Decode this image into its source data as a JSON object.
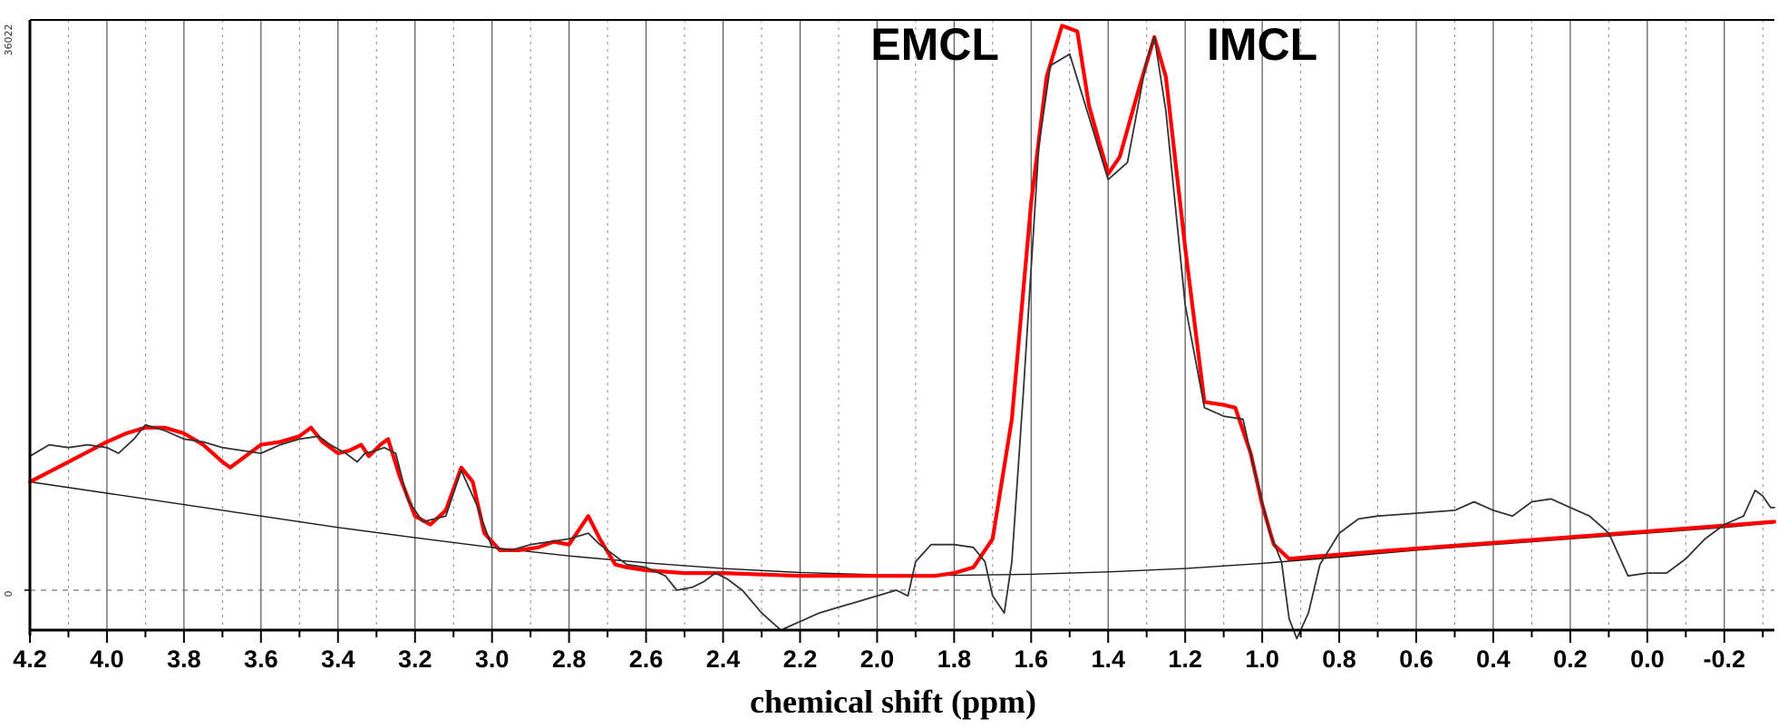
{
  "chart_data": {
    "type": "line",
    "title": "",
    "xlabel": "chemical shift (ppm)",
    "ylabel": "",
    "x_reversed": true,
    "xlim": [
      4.2,
      -0.33
    ],
    "ylim": [
      -0.07,
      1.0
    ],
    "y_tick_labels": {
      "zero": "0",
      "top": "36022"
    },
    "x_ticks": [
      4.2,
      4.0,
      3.8,
      3.6,
      3.4,
      3.2,
      3.0,
      2.8,
      2.6,
      2.4,
      2.2,
      2.0,
      1.8,
      1.6,
      1.4,
      1.2,
      1.0,
      0.8,
      0.6,
      0.4,
      0.2,
      0.0,
      -0.2
    ],
    "x_tick_labels": [
      "4.2",
      "4.0",
      "3.8",
      "3.6",
      "3.4",
      "3.2",
      "3.0",
      "2.8",
      "2.6",
      "2.4",
      "2.2",
      "2.0",
      "1.8",
      "1.6",
      "1.4",
      "1.2",
      "1.0",
      "0.8",
      "0.6",
      "0.4",
      "0.2",
      "0.0",
      "-0.2"
    ],
    "vertical_gridlines": "solid at each labeled tick, dotted at intermediate 0.1 ppm steps",
    "zero_line": "dashed",
    "annotations": [
      {
        "text": "EMCL",
        "x": 1.85,
        "y": 0.93
      },
      {
        "text": "IMCL",
        "x": 1.0,
        "y": 0.93
      }
    ],
    "series": [
      {
        "role": "measured spectrum",
        "color": "#333333",
        "points": [
          [
            4.2,
            0.235
          ],
          [
            4.15,
            0.255
          ],
          [
            4.1,
            0.25
          ],
          [
            4.05,
            0.255
          ],
          [
            4.0,
            0.25
          ],
          [
            3.97,
            0.24
          ],
          [
            3.93,
            0.265
          ],
          [
            3.9,
            0.29
          ],
          [
            3.85,
            0.28
          ],
          [
            3.8,
            0.265
          ],
          [
            3.75,
            0.26
          ],
          [
            3.7,
            0.25
          ],
          [
            3.65,
            0.245
          ],
          [
            3.6,
            0.24
          ],
          [
            3.55,
            0.255
          ],
          [
            3.5,
            0.265
          ],
          [
            3.45,
            0.27
          ],
          [
            3.42,
            0.255
          ],
          [
            3.38,
            0.24
          ],
          [
            3.35,
            0.225
          ],
          [
            3.33,
            0.24
          ],
          [
            3.3,
            0.245
          ],
          [
            3.28,
            0.25
          ],
          [
            3.25,
            0.24
          ],
          [
            3.22,
            0.16
          ],
          [
            3.18,
            0.12
          ],
          [
            3.12,
            0.13
          ],
          [
            3.08,
            0.21
          ],
          [
            3.04,
            0.15
          ],
          [
            3.0,
            0.075
          ],
          [
            2.95,
            0.07
          ],
          [
            2.9,
            0.08
          ],
          [
            2.85,
            0.085
          ],
          [
            2.8,
            0.09
          ],
          [
            2.75,
            0.1
          ],
          [
            2.72,
            0.08
          ],
          [
            2.68,
            0.06
          ],
          [
            2.65,
            0.045
          ],
          [
            2.6,
            0.04
          ],
          [
            2.55,
            0.025
          ],
          [
            2.52,
            0.0
          ],
          [
            2.48,
            0.005
          ],
          [
            2.45,
            0.015
          ],
          [
            2.42,
            0.03
          ],
          [
            2.39,
            0.02
          ],
          [
            2.35,
            0.0
          ],
          [
            2.3,
            -0.04
          ],
          [
            2.25,
            -0.07
          ],
          [
            2.2,
            -0.055
          ],
          [
            2.15,
            -0.04
          ],
          [
            2.1,
            -0.03
          ],
          [
            2.05,
            -0.02
          ],
          [
            2.0,
            -0.01
          ],
          [
            1.95,
            0.0
          ],
          [
            1.92,
            -0.01
          ],
          [
            1.9,
            0.05
          ],
          [
            1.86,
            0.08
          ],
          [
            1.8,
            0.08
          ],
          [
            1.75,
            0.075
          ],
          [
            1.72,
            0.05
          ],
          [
            1.7,
            -0.01
          ],
          [
            1.67,
            -0.04
          ],
          [
            1.65,
            0.05
          ],
          [
            1.62,
            0.35
          ],
          [
            1.58,
            0.78
          ],
          [
            1.55,
            0.92
          ],
          [
            1.5,
            0.94
          ],
          [
            1.45,
            0.83
          ],
          [
            1.4,
            0.72
          ],
          [
            1.35,
            0.75
          ],
          [
            1.3,
            0.93
          ],
          [
            1.28,
            0.97
          ],
          [
            1.25,
            0.84
          ],
          [
            1.2,
            0.5
          ],
          [
            1.15,
            0.32
          ],
          [
            1.1,
            0.305
          ],
          [
            1.05,
            0.3
          ],
          [
            1.02,
            0.21
          ],
          [
            0.98,
            0.1
          ],
          [
            0.95,
            0.05
          ],
          [
            0.93,
            -0.05
          ],
          [
            0.91,
            -0.085
          ],
          [
            0.88,
            -0.04
          ],
          [
            0.85,
            0.045
          ],
          [
            0.8,
            0.1
          ],
          [
            0.75,
            0.125
          ],
          [
            0.7,
            0.13
          ],
          [
            0.6,
            0.135
          ],
          [
            0.5,
            0.14
          ],
          [
            0.45,
            0.155
          ],
          [
            0.4,
            0.14
          ],
          [
            0.35,
            0.13
          ],
          [
            0.3,
            0.155
          ],
          [
            0.25,
            0.16
          ],
          [
            0.2,
            0.145
          ],
          [
            0.15,
            0.13
          ],
          [
            0.1,
            0.1
          ],
          [
            0.05,
            0.025
          ],
          [
            0.0,
            0.03
          ],
          [
            -0.05,
            0.03
          ],
          [
            -0.1,
            0.055
          ],
          [
            -0.15,
            0.09
          ],
          [
            -0.2,
            0.115
          ],
          [
            -0.25,
            0.13
          ],
          [
            -0.28,
            0.175
          ],
          [
            -0.3,
            0.165
          ],
          [
            -0.32,
            0.145
          ],
          [
            -0.33,
            0.145
          ]
        ]
      },
      {
        "role": "fitted curve",
        "color": "#ff0000",
        "points": [
          [
            4.2,
            0.19
          ],
          [
            4.1,
            0.225
          ],
          [
            4.0,
            0.26
          ],
          [
            3.95,
            0.275
          ],
          [
            3.9,
            0.285
          ],
          [
            3.85,
            0.285
          ],
          [
            3.8,
            0.275
          ],
          [
            3.75,
            0.255
          ],
          [
            3.7,
            0.225
          ],
          [
            3.68,
            0.215
          ],
          [
            3.64,
            0.235
          ],
          [
            3.6,
            0.255
          ],
          [
            3.55,
            0.26
          ],
          [
            3.5,
            0.27
          ],
          [
            3.47,
            0.285
          ],
          [
            3.44,
            0.26
          ],
          [
            3.4,
            0.24
          ],
          [
            3.37,
            0.245
          ],
          [
            3.34,
            0.255
          ],
          [
            3.32,
            0.235
          ],
          [
            3.29,
            0.255
          ],
          [
            3.27,
            0.265
          ],
          [
            3.24,
            0.2
          ],
          [
            3.2,
            0.13
          ],
          [
            3.16,
            0.115
          ],
          [
            3.12,
            0.14
          ],
          [
            3.08,
            0.215
          ],
          [
            3.05,
            0.19
          ],
          [
            3.02,
            0.1
          ],
          [
            2.98,
            0.07
          ],
          [
            2.93,
            0.07
          ],
          [
            2.88,
            0.075
          ],
          [
            2.84,
            0.085
          ],
          [
            2.8,
            0.08
          ],
          [
            2.75,
            0.13
          ],
          [
            2.72,
            0.09
          ],
          [
            2.68,
            0.045
          ],
          [
            2.65,
            0.04
          ],
          [
            2.6,
            0.035
          ],
          [
            2.5,
            0.03
          ],
          [
            2.4,
            0.03
          ],
          [
            2.2,
            0.025
          ],
          [
            2.0,
            0.025
          ],
          [
            1.85,
            0.025
          ],
          [
            1.8,
            0.03
          ],
          [
            1.75,
            0.04
          ],
          [
            1.7,
            0.09
          ],
          [
            1.65,
            0.3
          ],
          [
            1.6,
            0.68
          ],
          [
            1.56,
            0.9
          ],
          [
            1.52,
            0.99
          ],
          [
            1.48,
            0.98
          ],
          [
            1.45,
            0.85
          ],
          [
            1.4,
            0.73
          ],
          [
            1.37,
            0.76
          ],
          [
            1.32,
            0.88
          ],
          [
            1.28,
            0.97
          ],
          [
            1.25,
            0.9
          ],
          [
            1.2,
            0.6
          ],
          [
            1.15,
            0.33
          ],
          [
            1.1,
            0.325
          ],
          [
            1.07,
            0.32
          ],
          [
            1.03,
            0.24
          ],
          [
            1.0,
            0.15
          ],
          [
            0.97,
            0.08
          ],
          [
            0.93,
            0.055
          ],
          [
            0.88,
            0.058
          ],
          [
            0.7,
            0.068
          ],
          [
            0.5,
            0.078
          ],
          [
            0.3,
            0.088
          ],
          [
            0.1,
            0.098
          ],
          [
            -0.1,
            0.108
          ],
          [
            -0.33,
            0.12
          ]
        ]
      },
      {
        "role": "baseline",
        "color": "#1a1a1a",
        "points": [
          [
            4.2,
            0.19
          ],
          [
            4.0,
            0.17
          ],
          [
            3.8,
            0.15
          ],
          [
            3.6,
            0.13
          ],
          [
            3.4,
            0.11
          ],
          [
            3.2,
            0.092
          ],
          [
            3.0,
            0.075
          ],
          [
            2.8,
            0.06
          ],
          [
            2.6,
            0.048
          ],
          [
            2.4,
            0.038
          ],
          [
            2.2,
            0.031
          ],
          [
            2.0,
            0.027
          ],
          [
            1.8,
            0.026
          ],
          [
            1.6,
            0.028
          ],
          [
            1.4,
            0.032
          ],
          [
            1.2,
            0.038
          ],
          [
            1.0,
            0.047
          ],
          [
            0.8,
            0.058
          ],
          [
            0.6,
            0.07
          ],
          [
            0.4,
            0.08
          ],
          [
            0.2,
            0.09
          ],
          [
            0.0,
            0.1
          ],
          [
            -0.2,
            0.11
          ],
          [
            -0.33,
            0.118
          ]
        ]
      }
    ]
  }
}
